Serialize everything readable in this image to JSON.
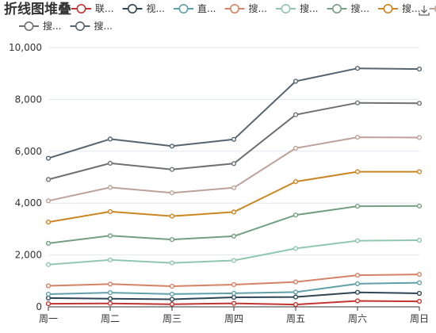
{
  "chart_data": {
    "type": "line",
    "stacked": true,
    "title": "折线图堆叠",
    "categories": [
      "周一",
      "周二",
      "周三",
      "周四",
      "周五",
      "周六",
      "周日"
    ],
    "ylim": [
      0,
      10000
    ],
    "yticks": [
      "0",
      "2,000",
      "4,000",
      "6,000",
      "8,000",
      "10,000"
    ],
    "grid": true,
    "legend_position": "top",
    "toolbox": "save-as-image",
    "series": [
      {
        "name": "联...",
        "color": "#c23531",
        "values": [
          120,
          132,
          101,
          134,
          90,
          230,
          210
        ]
      },
      {
        "name": "视...",
        "color": "#2f4554",
        "values": [
          220,
          182,
          191,
          234,
          290,
          330,
          310
        ]
      },
      {
        "name": "直...",
        "color": "#61a0a8",
        "values": [
          150,
          232,
          201,
          154,
          190,
          330,
          410
        ]
      },
      {
        "name": "搜...",
        "color": "#d48265",
        "values": [
          320,
          332,
          301,
          334,
          390,
          330,
          320
        ]
      },
      {
        "name": "搜...",
        "color": "#91c7ae",
        "values": [
          820,
          932,
          901,
          934,
          1290,
          1330,
          1320
        ]
      },
      {
        "name": "搜...",
        "color": "#749f83",
        "values": [
          820,
          932,
          901,
          934,
          1290,
          1330,
          1320
        ]
      },
      {
        "name": "搜...",
        "color": "#ca8622",
        "values": [
          820,
          932,
          901,
          934,
          1290,
          1330,
          1320
        ]
      },
      {
        "name": "搜...",
        "color": "#bda29a",
        "values": [
          820,
          932,
          901,
          934,
          1290,
          1330,
          1320
        ]
      },
      {
        "name": "搜...",
        "color": "#6e7074",
        "values": [
          820,
          932,
          901,
          934,
          1290,
          1330,
          1320
        ]
      },
      {
        "name": "搜...",
        "color": "#546570",
        "values": [
          820,
          932,
          901,
          934,
          1290,
          1330,
          1320
        ]
      }
    ]
  }
}
